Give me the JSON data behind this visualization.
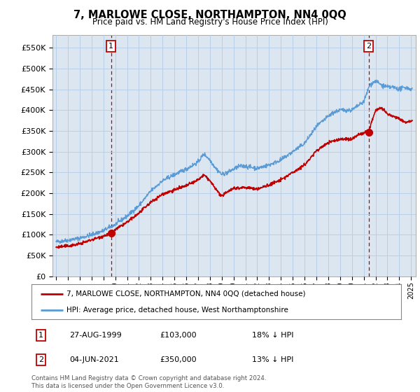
{
  "title": "7, MARLOWE CLOSE, NORTHAMPTON, NN4 0QQ",
  "subtitle": "Price paid vs. HM Land Registry's House Price Index (HPI)",
  "ylabel_ticks": [
    "£0",
    "£50K",
    "£100K",
    "£150K",
    "£200K",
    "£250K",
    "£300K",
    "£350K",
    "£400K",
    "£450K",
    "£500K",
    "£550K"
  ],
  "ytick_values": [
    0,
    50000,
    100000,
    150000,
    200000,
    250000,
    300000,
    350000,
    400000,
    450000,
    500000,
    550000
  ],
  "ylim": [
    0,
    580000
  ],
  "xlim_start": 1994.7,
  "xlim_end": 2025.4,
  "hpi_color": "#5b9bd5",
  "hpi_fill_color": "#dce6f1",
  "price_color": "#c00000",
  "sale1_date": 1999.65,
  "sale1_price": 103000,
  "sale2_date": 2021.42,
  "sale2_price": 350000,
  "legend_label1": "7, MARLOWE CLOSE, NORTHAMPTON, NN4 0QQ (detached house)",
  "legend_label2": "HPI: Average price, detached house, West Northamptonshire",
  "table_row1": [
    "1",
    "27-AUG-1999",
    "£103,000",
    "18% ↓ HPI"
  ],
  "table_row2": [
    "2",
    "04-JUN-2021",
    "£350,000",
    "13% ↓ HPI"
  ],
  "footnote": "Contains HM Land Registry data © Crown copyright and database right 2024.\nThis data is licensed under the Open Government Licence v3.0.",
  "bg_color": "#ffffff",
  "plot_bg_color": "#dce6f1",
  "grid_color": "#b8cfe8",
  "dashed_color": "#c00000"
}
